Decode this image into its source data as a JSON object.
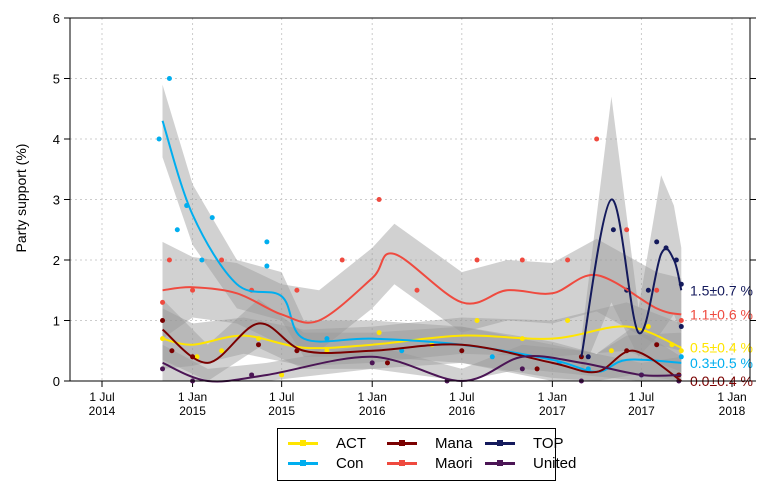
{
  "chart_data": {
    "type": "line",
    "ylabel": "Party support (%)",
    "ylim": [
      0,
      6
    ],
    "yticks": [
      "0",
      "1",
      "2",
      "3",
      "4",
      "5",
      "6"
    ],
    "xlim": [
      "2014-05-01",
      "2018-03-01"
    ],
    "xticks": [
      {
        "date": "2014-07-01",
        "l1": "1 Jul",
        "l2": "2014"
      },
      {
        "date": "2015-01-01",
        "l1": "1 Jan",
        "l2": "2015"
      },
      {
        "date": "2015-07-01",
        "l1": "1 Jul",
        "l2": "2015"
      },
      {
        "date": "2016-01-01",
        "l1": "1 Jan",
        "l2": "2016"
      },
      {
        "date": "2016-07-01",
        "l1": "1 Jul",
        "l2": "2016"
      },
      {
        "date": "2017-01-01",
        "l1": "1 Jan",
        "l2": "2017"
      },
      {
        "date": "2017-07-01",
        "l1": "1 Jul",
        "l2": "2017"
      },
      {
        "date": "2018-01-01",
        "l1": "1 Jan",
        "l2": "2018"
      }
    ],
    "grid": true,
    "legend_position": "bottom",
    "series": [
      {
        "name": "ACT",
        "color": "#FFE500",
        "end_label": "0.5±0.4 %",
        "trend": [
          [
            "2014-11-01",
            0.7
          ],
          [
            "2015-01-01",
            0.6
          ],
          [
            "2015-04-15",
            0.75
          ],
          [
            "2015-08-15",
            0.55
          ],
          [
            "2016-01-01",
            0.6
          ],
          [
            "2016-07-01",
            0.75
          ],
          [
            "2017-01-01",
            0.7
          ],
          [
            "2017-06-01",
            0.9
          ],
          [
            "2017-09-20",
            0.55
          ]
        ],
        "band": [
          0.5,
          0.35,
          0.3,
          0.3,
          0.3,
          0.3,
          0.3,
          0.4,
          0.4
        ],
        "points": [
          [
            "2014-11-01",
            0.7
          ],
          [
            "2015-01-10",
            0.4
          ],
          [
            "2015-03-01",
            0.5
          ],
          [
            "2015-05-15",
            0.7
          ],
          [
            "2015-07-01",
            0.1
          ],
          [
            "2015-10-01",
            0.5
          ],
          [
            "2016-01-15",
            0.8
          ],
          [
            "2016-05-01",
            0.6
          ],
          [
            "2016-08-01",
            1.0
          ],
          [
            "2016-11-01",
            0.7
          ],
          [
            "2017-02-01",
            1.0
          ],
          [
            "2017-05-01",
            0.5
          ],
          [
            "2017-07-15",
            0.9
          ],
          [
            "2017-09-01",
            0.6
          ],
          [
            "2017-09-20",
            0.5
          ]
        ]
      },
      {
        "name": "Con",
        "color": "#00AEEF",
        "end_label": "0.3±0.5 %",
        "trend": [
          [
            "2014-11-01",
            4.3
          ],
          [
            "2015-01-01",
            2.75
          ],
          [
            "2015-04-01",
            1.6
          ],
          [
            "2015-07-01",
            1.4
          ],
          [
            "2015-08-15",
            0.7
          ],
          [
            "2016-01-01",
            0.7
          ],
          [
            "2016-07-01",
            0.6
          ],
          [
            "2017-01-01",
            0.35
          ],
          [
            "2017-04-01",
            0.15
          ],
          [
            "2017-06-01",
            0.35
          ],
          [
            "2017-09-20",
            0.3
          ]
        ],
        "band": [
          0.6,
          0.5,
          0.4,
          0.4,
          0.3,
          0.3,
          0.3,
          0.3,
          0.3,
          0.4,
          0.5
        ],
        "points": [
          [
            "2014-10-25",
            4.0
          ],
          [
            "2014-11-15",
            5.0
          ],
          [
            "2014-12-01",
            2.5
          ],
          [
            "2014-12-20",
            2.9
          ],
          [
            "2015-01-20",
            2.0
          ],
          [
            "2015-02-10",
            2.7
          ],
          [
            "2015-06-01",
            2.3
          ],
          [
            "2015-06-01",
            1.9
          ],
          [
            "2015-10-01",
            0.7
          ],
          [
            "2016-03-01",
            0.5
          ],
          [
            "2016-09-01",
            0.4
          ],
          [
            "2017-01-15",
            0.3
          ],
          [
            "2017-03-15",
            0.2
          ],
          [
            "2017-07-01",
            0.1
          ],
          [
            "2017-09-20",
            0.4
          ]
        ]
      },
      {
        "name": "Mana",
        "color": "#7A0000",
        "end_label": "0.0±0.4 %",
        "trend": [
          [
            "2014-11-01",
            0.85
          ],
          [
            "2015-02-01",
            0.3
          ],
          [
            "2015-05-15",
            0.95
          ],
          [
            "2015-08-15",
            0.5
          ],
          [
            "2016-01-01",
            0.5
          ],
          [
            "2016-07-01",
            0.6
          ],
          [
            "2017-01-01",
            0.3
          ],
          [
            "2017-04-01",
            0.15
          ],
          [
            "2017-06-15",
            0.5
          ],
          [
            "2017-09-20",
            0.0
          ]
        ],
        "band": [
          0.5,
          0.3,
          0.4,
          0.3,
          0.3,
          0.3,
          0.3,
          0.3,
          0.4,
          0.4
        ],
        "points": [
          [
            "2014-11-01",
            1.0
          ],
          [
            "2014-11-20",
            0.5
          ],
          [
            "2015-01-01",
            0.4
          ],
          [
            "2015-05-15",
            0.6
          ],
          [
            "2015-08-01",
            0.5
          ],
          [
            "2016-02-01",
            0.3
          ],
          [
            "2016-07-01",
            0.5
          ],
          [
            "2016-12-01",
            0.2
          ],
          [
            "2017-03-01",
            0.4
          ],
          [
            "2017-06-01",
            0.5
          ],
          [
            "2017-08-01",
            0.6
          ],
          [
            "2017-09-15",
            0.1
          ]
        ]
      },
      {
        "name": "Maori",
        "color": "#EF4A3F",
        "end_label": "1.1±0.6 %",
        "trend": [
          [
            "2014-11-01",
            1.5
          ],
          [
            "2015-01-01",
            1.55
          ],
          [
            "2015-04-01",
            1.45
          ],
          [
            "2015-07-01",
            1.1
          ],
          [
            "2015-09-15",
            1.0
          ],
          [
            "2016-01-01",
            1.7
          ],
          [
            "2016-02-15",
            2.1
          ],
          [
            "2016-07-01",
            1.3
          ],
          [
            "2016-10-01",
            1.5
          ],
          [
            "2017-01-01",
            1.45
          ],
          [
            "2017-04-01",
            1.75
          ],
          [
            "2017-08-01",
            1.2
          ],
          [
            "2017-09-20",
            1.1
          ]
        ],
        "band": [
          0.8,
          0.5,
          0.5,
          0.5,
          0.5,
          0.5,
          0.5,
          0.5,
          0.5,
          0.5,
          0.6,
          0.6,
          0.6
        ],
        "points": [
          [
            "2014-11-01",
            1.3
          ],
          [
            "2014-11-15",
            2.0
          ],
          [
            "2015-01-01",
            1.5
          ],
          [
            "2015-03-01",
            2.0
          ],
          [
            "2015-05-01",
            1.5
          ],
          [
            "2015-08-01",
            1.5
          ],
          [
            "2015-11-01",
            2.0
          ],
          [
            "2016-01-15",
            3.0
          ],
          [
            "2016-04-01",
            1.5
          ],
          [
            "2016-08-01",
            2.0
          ],
          [
            "2016-11-01",
            2.0
          ],
          [
            "2017-02-01",
            2.0
          ],
          [
            "2017-04-01",
            4.0
          ],
          [
            "2017-06-01",
            2.5
          ],
          [
            "2017-08-01",
            1.5
          ],
          [
            "2017-09-20",
            1.0
          ]
        ]
      },
      {
        "name": "TOP",
        "color": "#141A5C",
        "end_label": "1.5±0.7 %",
        "trend": [
          [
            "2017-03-01",
            0.4
          ],
          [
            "2017-05-01",
            3.0
          ],
          [
            "2017-06-25",
            0.8
          ],
          [
            "2017-08-10",
            2.1
          ],
          [
            "2017-09-05",
            2.0
          ],
          [
            "2017-09-20",
            1.5
          ]
        ],
        "band": [
          0.3,
          1.7,
          0.4,
          1.3,
          0.9,
          0.7
        ],
        "points": [
          [
            "2017-03-15",
            0.4
          ],
          [
            "2017-05-05",
            2.5
          ],
          [
            "2017-06-01",
            1.5
          ],
          [
            "2017-07-15",
            1.5
          ],
          [
            "2017-08-01",
            2.3
          ],
          [
            "2017-08-20",
            2.2
          ],
          [
            "2017-09-10",
            2.0
          ],
          [
            "2017-09-20",
            1.6
          ],
          [
            "2017-09-20",
            0.9
          ]
        ]
      },
      {
        "name": "United",
        "color": "#4B1555",
        "end_label": "",
        "trend": [
          [
            "2014-11-01",
            0.3
          ],
          [
            "2015-02-01",
            0.0
          ],
          [
            "2015-06-01",
            0.1
          ],
          [
            "2016-01-01",
            0.4
          ],
          [
            "2016-07-01",
            0.0
          ],
          [
            "2016-11-01",
            0.4
          ],
          [
            "2017-03-01",
            0.3
          ],
          [
            "2017-07-01",
            0.1
          ],
          [
            "2017-09-20",
            0.1
          ]
        ],
        "band": [
          0.3,
          0.2,
          0.2,
          0.2,
          0.2,
          0.2,
          0.2,
          0.2,
          0.3
        ],
        "points": [
          [
            "2014-11-01",
            0.2
          ],
          [
            "2015-01-01",
            0.0
          ],
          [
            "2015-05-01",
            0.1
          ],
          [
            "2016-01-01",
            0.3
          ],
          [
            "2016-06-01",
            0.0
          ],
          [
            "2016-11-01",
            0.2
          ],
          [
            "2017-03-01",
            0.0
          ],
          [
            "2017-07-01",
            0.1
          ],
          [
            "2017-09-15",
            0.0
          ]
        ]
      }
    ]
  }
}
